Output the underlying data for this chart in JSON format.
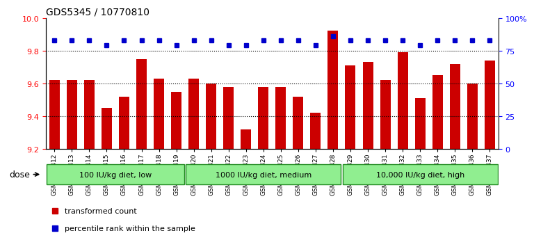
{
  "title": "GDS5345 / 10770810",
  "samples": [
    "GSM1502412",
    "GSM1502413",
    "GSM1502414",
    "GSM1502415",
    "GSM1502416",
    "GSM1502417",
    "GSM1502418",
    "GSM1502419",
    "GSM1502420",
    "GSM1502421",
    "GSM1502422",
    "GSM1502423",
    "GSM1502424",
    "GSM1502425",
    "GSM1502426",
    "GSM1502427",
    "GSM1502428",
    "GSM1502429",
    "GSM1502430",
    "GSM1502431",
    "GSM1502432",
    "GSM1502433",
    "GSM1502434",
    "GSM1502435",
    "GSM1502436",
    "GSM1502437"
  ],
  "bar_values": [
    9.62,
    9.62,
    9.62,
    9.45,
    9.52,
    9.75,
    9.63,
    9.55,
    9.63,
    9.6,
    9.58,
    9.32,
    9.58,
    9.58,
    9.52,
    9.42,
    9.92,
    9.71,
    9.73,
    9.62,
    9.79,
    9.51,
    9.65,
    9.72,
    9.6,
    9.74
  ],
  "percentile_values": [
    83,
    83,
    83,
    79,
    83,
    83,
    83,
    79,
    83,
    83,
    79,
    79,
    83,
    83,
    83,
    79,
    86,
    83,
    83,
    83,
    83,
    79,
    83,
    83,
    83,
    83
  ],
  "groups": [
    {
      "label": "100 IU/kg diet, low",
      "start": 0,
      "end": 8
    },
    {
      "label": "1000 IU/kg diet, medium",
      "start": 8,
      "end": 17
    },
    {
      "label": "10,000 IU/kg diet, high",
      "start": 17,
      "end": 26
    }
  ],
  "bar_color": "#CC0000",
  "dot_color": "#0000CC",
  "ylim_left": [
    9.2,
    10.0
  ],
  "ylim_right": [
    0,
    100
  ],
  "yticks_left": [
    9.2,
    9.4,
    9.6,
    9.8,
    10.0
  ],
  "yticks_right": [
    0,
    25,
    50,
    75,
    100
  ],
  "ytick_labels_right": [
    "0",
    "25",
    "50",
    "75",
    "100%"
  ],
  "hlines": [
    9.4,
    9.6,
    9.8
  ],
  "group_fill": "#90EE90",
  "group_edge": "#228B22",
  "plot_bg": "#FFFFFF",
  "legend_items": [
    {
      "color": "#CC0000",
      "label": "transformed count"
    },
    {
      "color": "#0000CC",
      "label": "percentile rank within the sample"
    }
  ]
}
